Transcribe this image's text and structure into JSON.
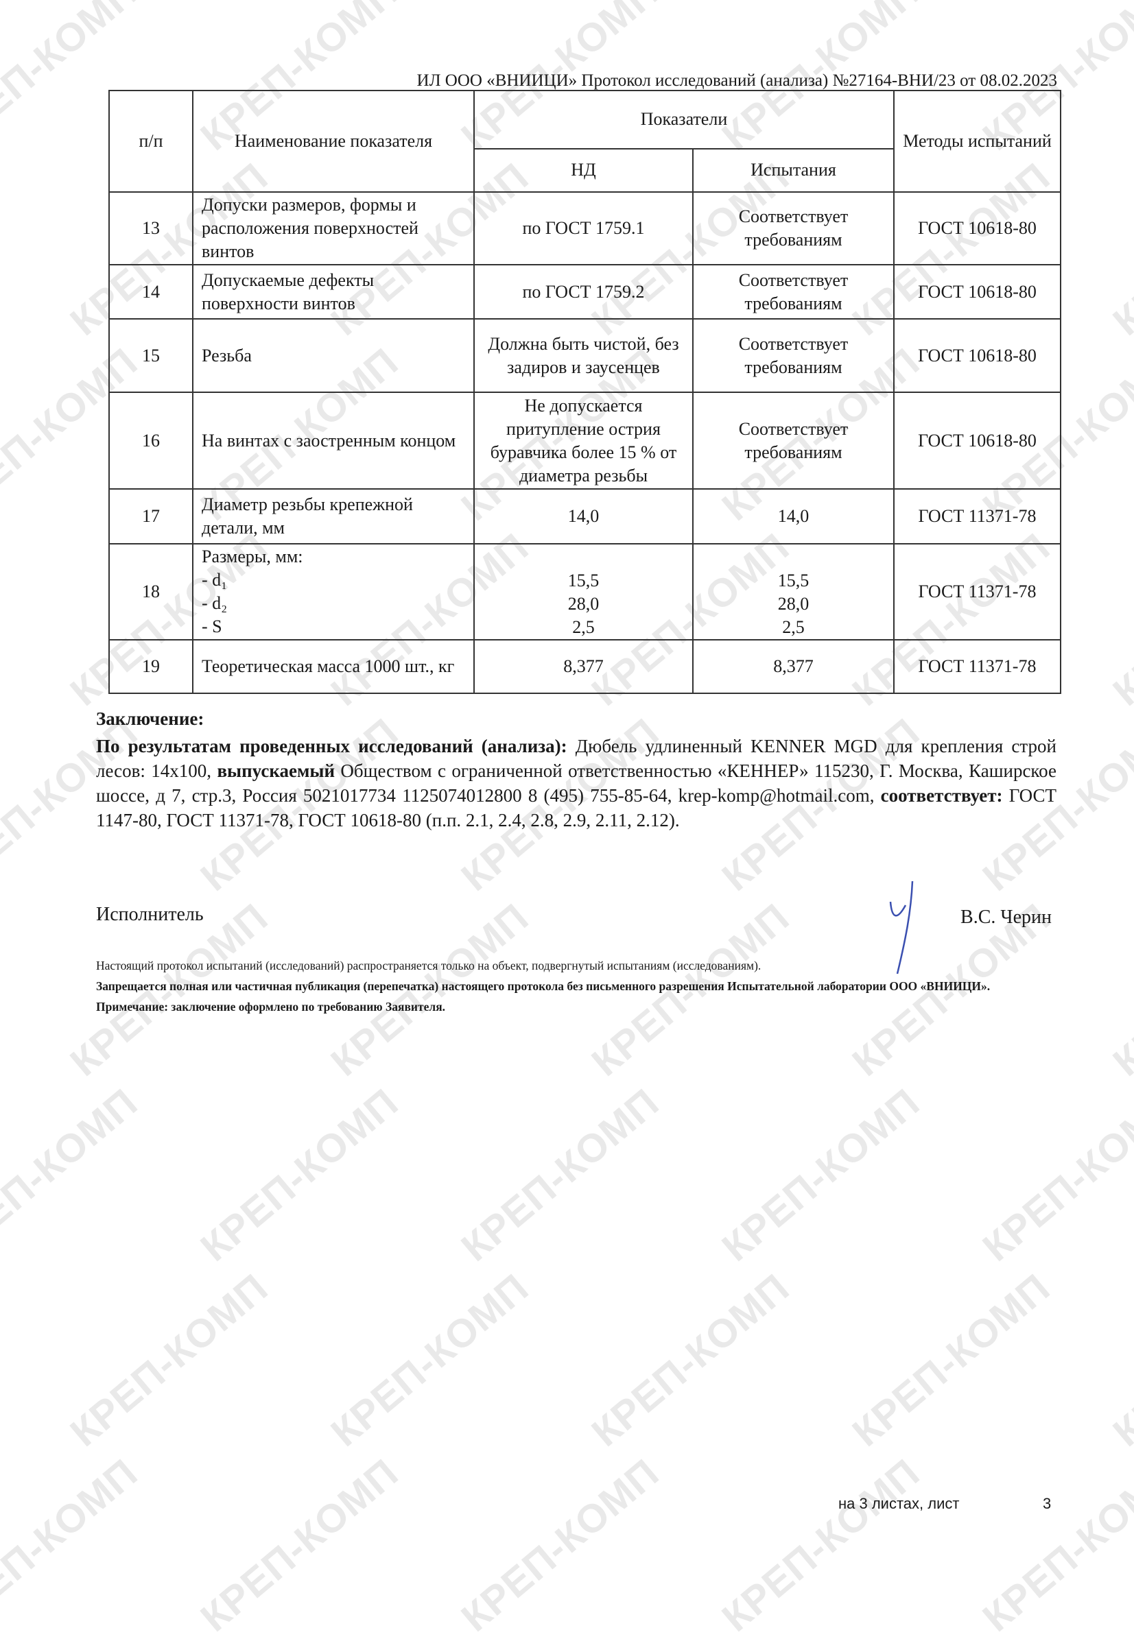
{
  "watermark": "КРЕП-КОМП",
  "header": "ИЛ ООО «ВНИИЦИ» Протокол исследований (анализа)  №27164-ВНИ/23 от  08.02.2023",
  "table": {
    "headers": {
      "num": "п/п",
      "name": "Наименование показателя",
      "indicators": "Показатели",
      "nd": "НД",
      "tests": "Испытания",
      "methods": "Методы испытаний"
    },
    "rows": [
      {
        "num": "13",
        "name": "Допуски размеров, формы и расположения поверхностей винтов",
        "nd": "по ГОСТ 1759.1",
        "test": "Соответствует требованиям",
        "method": "ГОСТ 10618-80"
      },
      {
        "num": "14",
        "name": "Допускаемые дефекты поверхности винтов",
        "nd": "по ГОСТ 1759.2",
        "test": "Соответствует требованиям",
        "method": "ГОСТ 10618-80"
      },
      {
        "num": "15",
        "name": "Резьба",
        "nd": "Должна быть чистой, без задиров и заусенцев",
        "test": "Соответствует требованиям",
        "method": "ГОСТ 10618-80"
      },
      {
        "num": "16",
        "name": "На винтах с заостренным концом",
        "nd": "Не допускается притупление острия буравчика более 15 % от диаметра резьбы",
        "test": "Соответствует требованиям",
        "method": "ГОСТ 10618-80"
      },
      {
        "num": "17",
        "name": "Диаметр резьбы крепежной детали, мм",
        "nd": "14,0",
        "test": "14,0",
        "method": "ГОСТ 11371-78"
      },
      {
        "num": "18",
        "name": "Размеры, мм:",
        "sub": [
          "- d₁",
          "- d₂",
          "- S"
        ],
        "nd_values": [
          "15,5",
          "28,0",
          "2,5"
        ],
        "test_values": [
          "15,5",
          "28,0",
          "2,5"
        ],
        "method": "ГОСТ 11371-78"
      },
      {
        "num": "19",
        "name": "Теоретическая масса 1000 шт., кг",
        "nd": "8,377",
        "test": "8,377",
        "method": "ГОСТ 11371-78"
      }
    ]
  },
  "conclusion": {
    "title": "Заключение:",
    "lead_bold": "По результатам проведенных исследований (анализа):",
    "part1": " Дюбель удлиненный KENNER MGD для крепления строй лесов: 14x100, ",
    "bold2": "выпускаемый",
    "part2": " Обществом с ограниченной ответственностью «КЕННЕР» 115230, Г. Москва, Каширское шоссе, д 7, стр.3, Россия 5021017734 1125074012800 8 (495) 755-85-64, krep-komp@hotmail.com, ",
    "bold3": "соответствует:",
    "part3": " ГОСТ 1147-80, ГОСТ 11371-78, ГОСТ 10618-80 (п.п. 2.1, 2.4, 2.8, 2.9, 2.11, 2.12)."
  },
  "executor_label": "Исполнитель",
  "signer": "В.С. Черин",
  "signature_color": "#3a4fb0",
  "notes": [
    "Настоящий протокол испытаний (исследований) распространяется только на объект, подвергнутый испытаниям (исследованиям).",
    "Запрещается полная или частичная публикация (перепечатка) настоящего протокола без письменного разрешения Испытательной лаборатории  ООО «ВНИИЦИ».",
    "Примечание: заключение оформлено по требованию Заявителя."
  ],
  "footer": {
    "sheets": "на 3  листах, лист",
    "page": "3"
  }
}
